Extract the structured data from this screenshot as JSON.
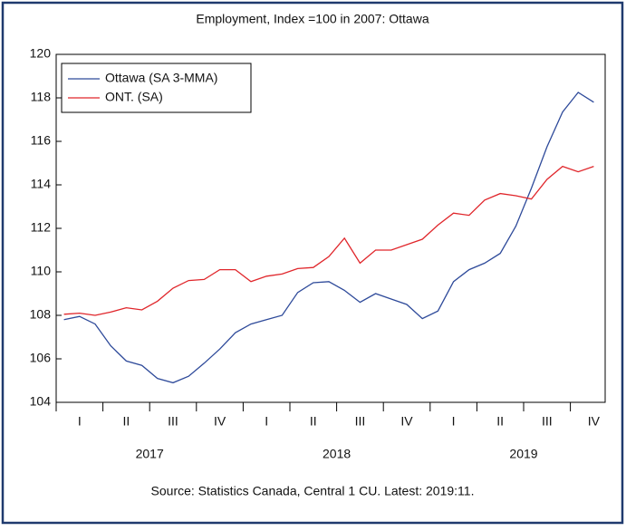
{
  "chart_data": {
    "type": "line",
    "title": "Employment, Index =100 in 2007: Ottawa",
    "footer": "Source: Statistics Canada, Central 1 CU. Latest: 2019:11.",
    "categories": [
      null,
      null,
      null,
      null,
      null,
      null,
      null,
      null,
      null,
      null,
      null,
      null,
      null,
      null,
      null,
      null,
      null,
      null,
      null,
      null,
      null,
      null,
      null,
      null,
      null,
      null,
      null,
      null,
      null,
      null,
      null,
      null,
      null,
      null,
      null
    ],
    "quarters": [
      "I",
      "II",
      "III",
      "IV",
      "I",
      "II",
      "III",
      "IV",
      "I",
      "II",
      "III",
      "IV"
    ],
    "years": [
      "2017",
      "2018",
      "2019"
    ],
    "series": [
      {
        "name": "Ottawa (SA 3-MMA)",
        "color": "#2e4a9a",
        "values": [
          107.8,
          107.95,
          107.6,
          106.6,
          105.9,
          105.7,
          105.1,
          104.9,
          105.2,
          105.8,
          106.45,
          107.2,
          107.6,
          107.8,
          108.0,
          109.05,
          109.5,
          109.55,
          109.15,
          108.6,
          109.0,
          108.75,
          108.5,
          107.85,
          108.2,
          109.55,
          110.1,
          110.4,
          110.85,
          112.1,
          113.85,
          115.75,
          117.35,
          118.25,
          117.8
        ]
      },
      {
        "name": "ONT. (SA)",
        "color": "#e0262b",
        "values": [
          108.05,
          108.1,
          108.0,
          108.15,
          108.35,
          108.25,
          108.65,
          109.25,
          109.6,
          109.65,
          110.1,
          110.1,
          109.55,
          109.8,
          109.9,
          110.15,
          110.2,
          110.7,
          111.55,
          110.4,
          111.0,
          111.0,
          111.25,
          111.5,
          112.15,
          112.7,
          112.6,
          113.3,
          113.6,
          113.5,
          113.35,
          114.25,
          114.85,
          114.6,
          114.85
        ]
      }
    ],
    "ylim": [
      104,
      120
    ],
    "yticks": [
      104,
      106,
      108,
      110,
      112,
      114,
      116,
      118,
      120
    ],
    "legend": "upper-left"
  }
}
